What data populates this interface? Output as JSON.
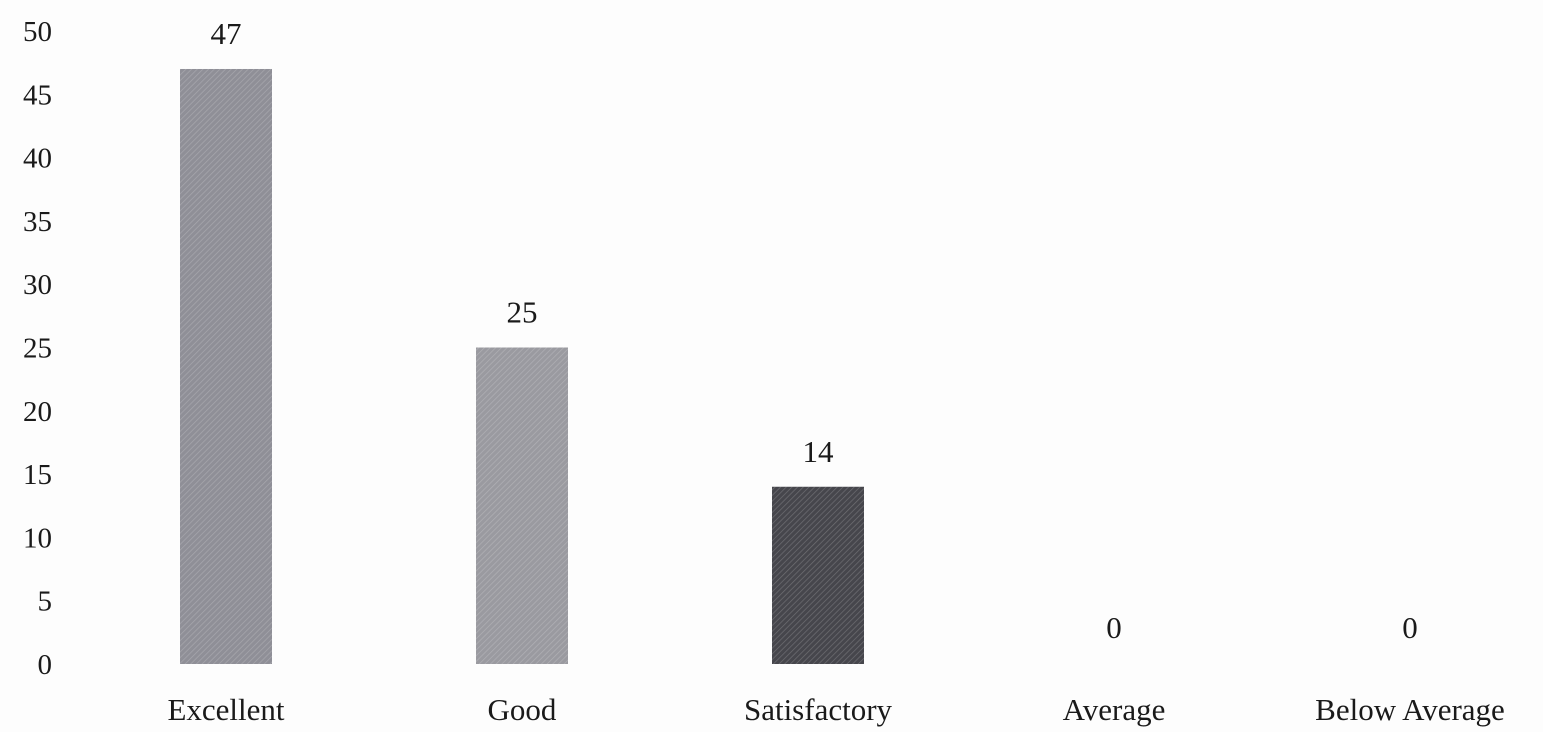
{
  "chart_data": {
    "type": "bar",
    "title": "",
    "xlabel": "",
    "ylabel": "",
    "categories": [
      "Excellent",
      "Good",
      "Satisfactory",
      "Average",
      "Below Average"
    ],
    "values": [
      47,
      25,
      14,
      0,
      0
    ],
    "data_labels": [
      "47",
      "25",
      "14",
      "0",
      "0"
    ],
    "ylim": [
      0,
      50
    ],
    "yticks": [
      0,
      5,
      10,
      15,
      20,
      25,
      30,
      35,
      40,
      45,
      50
    ],
    "ytick_labels": [
      "0",
      "5",
      "10",
      "15",
      "20",
      "25",
      "30",
      "35",
      "40",
      "45",
      "50"
    ],
    "grid": false,
    "legend": "none",
    "bar_colors": [
      "#8f8f97",
      "#9a9aa0",
      "#46464c",
      "#8f8f97",
      "#8f8f97"
    ]
  }
}
